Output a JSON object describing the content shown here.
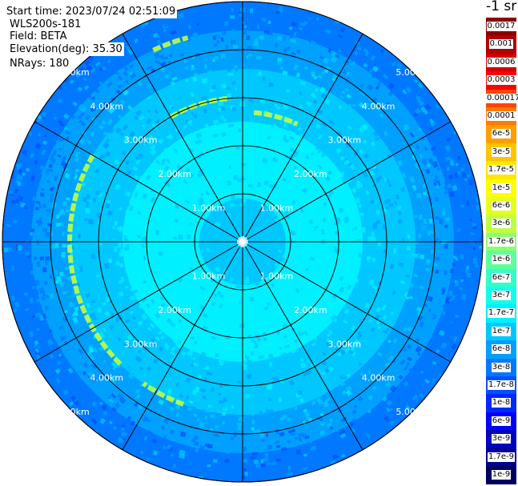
{
  "header": {
    "start_time": "Start time: 2023/07/24 02:51:09",
    "instrument": "WLS200s-181",
    "field": "Field: BETA",
    "elevation": "Elevation(deg): 35.30",
    "nrays": "NRays: 180"
  },
  "colorbar": {
    "title": "-1 sr",
    "levels": [
      {
        "label": "0.0017",
        "color": "#8b0000"
      },
      {
        "label": "0.001",
        "color": "#b00000"
      },
      {
        "label": "0.0006",
        "color": "#d40000"
      },
      {
        "label": "0.0003",
        "color": "#ff0000"
      },
      {
        "label": "0.00017",
        "color": "#ff4500"
      },
      {
        "label": "0.0001",
        "color": "#ff7a00"
      },
      {
        "label": "6e-5",
        "color": "#ff9e00"
      },
      {
        "label": "3e-5",
        "color": "#ffc400"
      },
      {
        "label": "1.7e-5",
        "color": "#ffe600"
      },
      {
        "label": "1e-5",
        "color": "#ffff00"
      },
      {
        "label": "6e-6",
        "color": "#e6ff1a"
      },
      {
        "label": "3e-6",
        "color": "#c0ff40"
      },
      {
        "label": "1.7e-6",
        "color": "#8cff70"
      },
      {
        "label": "1e-6",
        "color": "#5cff9c"
      },
      {
        "label": "6e-7",
        "color": "#30ffc8"
      },
      {
        "label": "3e-7",
        "color": "#10ffe8"
      },
      {
        "label": "1.7e-7",
        "color": "#00f0ff"
      },
      {
        "label": "1e-7",
        "color": "#00c8ff"
      },
      {
        "label": "6e-8",
        "color": "#00a0ff"
      },
      {
        "label": "3e-8",
        "color": "#0078ff"
      },
      {
        "label": "1.7e-8",
        "color": "#0050ff"
      },
      {
        "label": "1e-8",
        "color": "#0028ff"
      },
      {
        "label": "6e-9",
        "color": "#0000ff"
      },
      {
        "label": "3e-9",
        "color": "#0000c0"
      },
      {
        "label": "1.7e-9",
        "color": "#000090"
      },
      {
        "label": "1e-9",
        "color": "#000060"
      }
    ]
  },
  "chart_data": {
    "type": "heatmap",
    "projection": "polar (PPI)",
    "range_rings_km": [
      1,
      2,
      3,
      4,
      5
    ],
    "ring_labels": [
      "1.00km",
      "2.00km",
      "3.00km",
      "4.00km",
      "5.00km"
    ],
    "max_range_km": 5.0,
    "spoke_interval_deg": 30,
    "nrays": 180,
    "field": "BETA",
    "units": "sr-1",
    "scale": "log",
    "range_bands_km": [
      {
        "from": 0.0,
        "to": 0.9,
        "level": "1e-7"
      },
      {
        "from": 0.9,
        "to": 2.5,
        "level": "1.7e-7"
      },
      {
        "from": 2.5,
        "to": 3.6,
        "level": "1e-7"
      },
      {
        "from": 3.6,
        "to": 4.4,
        "level": "6e-8"
      },
      {
        "from": 4.4,
        "to": 5.0,
        "level": "3e-8"
      }
    ],
    "enhanced_arcs": [
      {
        "range_km": 3.6,
        "az_from_deg": 225,
        "az_to_deg": 300,
        "level": "3e-6"
      },
      {
        "range_km": 3.0,
        "az_from_deg": 330,
        "az_to_deg": 355,
        "level": "3e-6"
      },
      {
        "range_km": 2.7,
        "az_from_deg": 5,
        "az_to_deg": 25,
        "level": "3e-6"
      },
      {
        "range_km": 4.4,
        "az_from_deg": 335,
        "az_to_deg": 345,
        "level": "3e-6"
      },
      {
        "range_km": 3.6,
        "az_from_deg": 200,
        "az_to_deg": 215,
        "level": "3e-6"
      }
    ]
  }
}
